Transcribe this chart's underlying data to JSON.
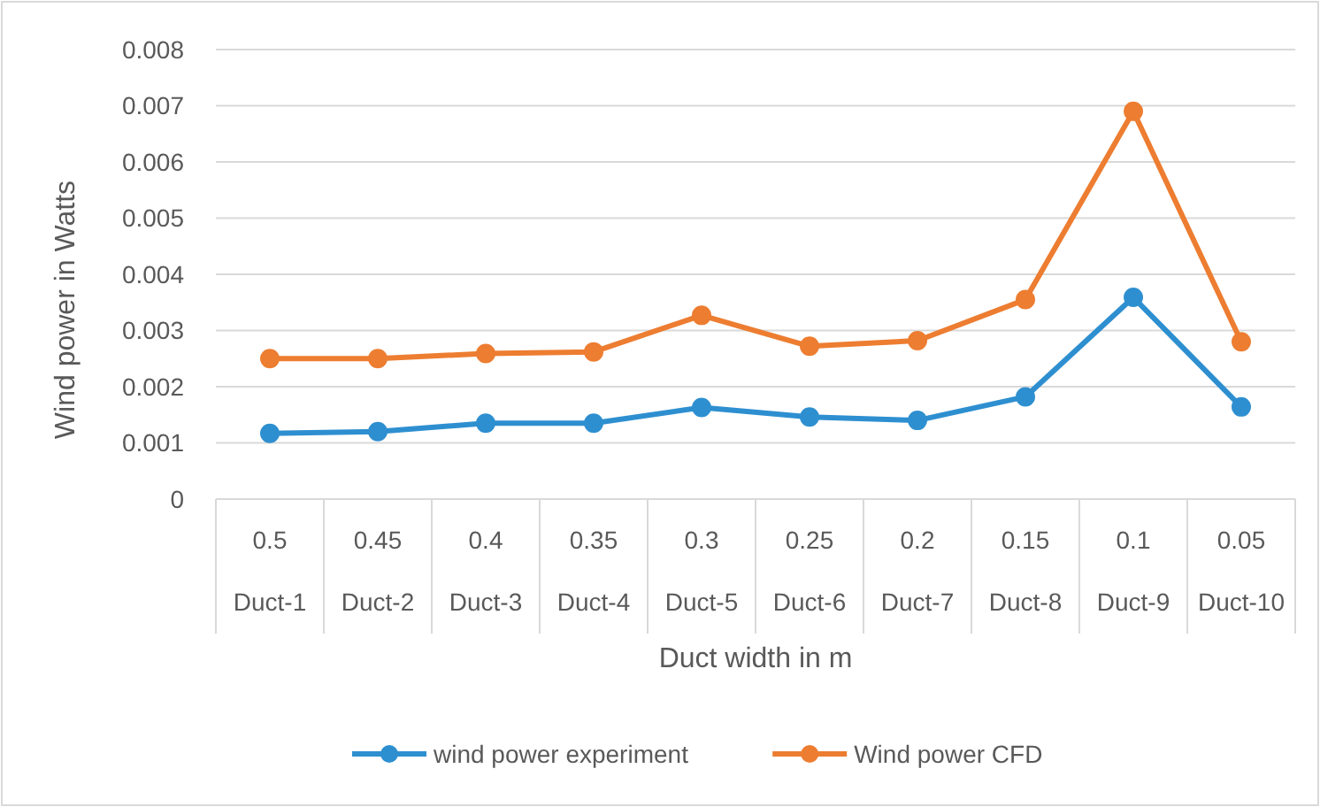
{
  "chart_data": {
    "type": "line",
    "xlabel": "Duct width in m",
    "ylabel": "Wind power in Watts",
    "categories": [
      "0.5\nDuct-1",
      "0.45\nDuct-2",
      "0.4\nDuct-3",
      "0.35\nDuct-4",
      "0.3\nDuct-5",
      "0.25\nDuct-6",
      "0.2\nDuct-7",
      "0.15\nDuct-8",
      "0.1\nDuct-9",
      "0.05\nDuct-10"
    ],
    "series": [
      {
        "name": "wind power experiment",
        "color": "#2e8fd0",
        "values": [
          0.00117,
          0.0012,
          0.00135,
          0.00135,
          0.00163,
          0.00146,
          0.0014,
          0.00182,
          0.00359,
          0.00164
        ]
      },
      {
        "name": "Wind power CFD",
        "color": "#ed7d31",
        "values": [
          0.0025,
          0.0025,
          0.00259,
          0.00262,
          0.00327,
          0.00272,
          0.00282,
          0.00355,
          0.0069,
          0.0028
        ]
      }
    ],
    "ylim": [
      0,
      0.008
    ],
    "yticks": [
      0,
      0.001,
      0.002,
      0.003,
      0.004,
      0.005,
      0.006,
      0.007,
      0.008
    ],
    "grid": "y",
    "legend": "bottom",
    "marker": "circle",
    "line_style": "solid"
  }
}
